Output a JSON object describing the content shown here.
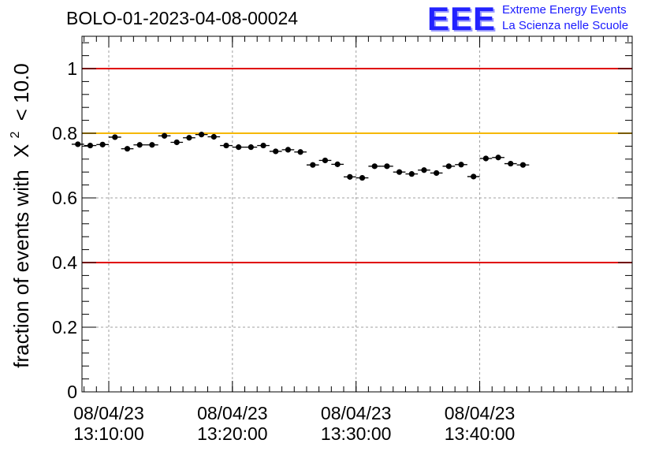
{
  "header": {
    "run_id": "BOLO-01-2023-04-08-00024"
  },
  "logo": {
    "letters": "EEE",
    "line1": "Extreme Energy Events",
    "line2": "La Scienza nelle Scuole"
  },
  "chart_data": {
    "type": "scatter",
    "title": "BOLO-01-2023-04-08-00024",
    "ylabel": "fraction of events with",
    "ylabel_tail": "< 10.0",
    "ylabel_symbol": "X",
    "ylabel_exponent": "2",
    "ylim": [
      0,
      1.1
    ],
    "yticks": [
      0,
      0.2,
      0.4,
      0.6,
      0.8,
      1
    ],
    "ytick_labels": [
      "0",
      "0.2",
      "0.4",
      "0.6",
      "0.8",
      "1"
    ],
    "xlim_seconds": [
      -130,
      2540
    ],
    "xticks": [
      {
        "t": 0,
        "date": "08/04/23",
        "time": "13:10:00"
      },
      {
        "t": 600,
        "date": "08/04/23",
        "time": "13:20:00"
      },
      {
        "t": 1200,
        "date": "08/04/23",
        "time": "13:30:00"
      },
      {
        "t": 1800,
        "date": "08/04/23",
        "time": "13:40:00"
      }
    ],
    "grid": true,
    "reference_lines": [
      {
        "y": 1.0,
        "color": "#e00000"
      },
      {
        "y": 0.8,
        "color": "#f5b800"
      },
      {
        "y": 0.4,
        "color": "#e00000"
      }
    ],
    "bin_width_seconds": 60,
    "x_start_time": "13:07:30",
    "y": [
      0.766,
      0.762,
      0.765,
      0.788,
      0.752,
      0.764,
      0.764,
      0.792,
      0.772,
      0.786,
      0.796,
      0.789,
      0.762,
      0.757,
      0.757,
      0.762,
      0.744,
      0.749,
      0.742,
      0.702,
      0.716,
      0.704,
      0.665,
      0.662,
      0.698,
      0.698,
      0.68,
      0.674,
      0.686,
      0.677,
      0.698,
      0.703,
      0.666,
      0.722,
      0.725,
      0.706,
      0.702
    ],
    "y_err": 0.008
  }
}
